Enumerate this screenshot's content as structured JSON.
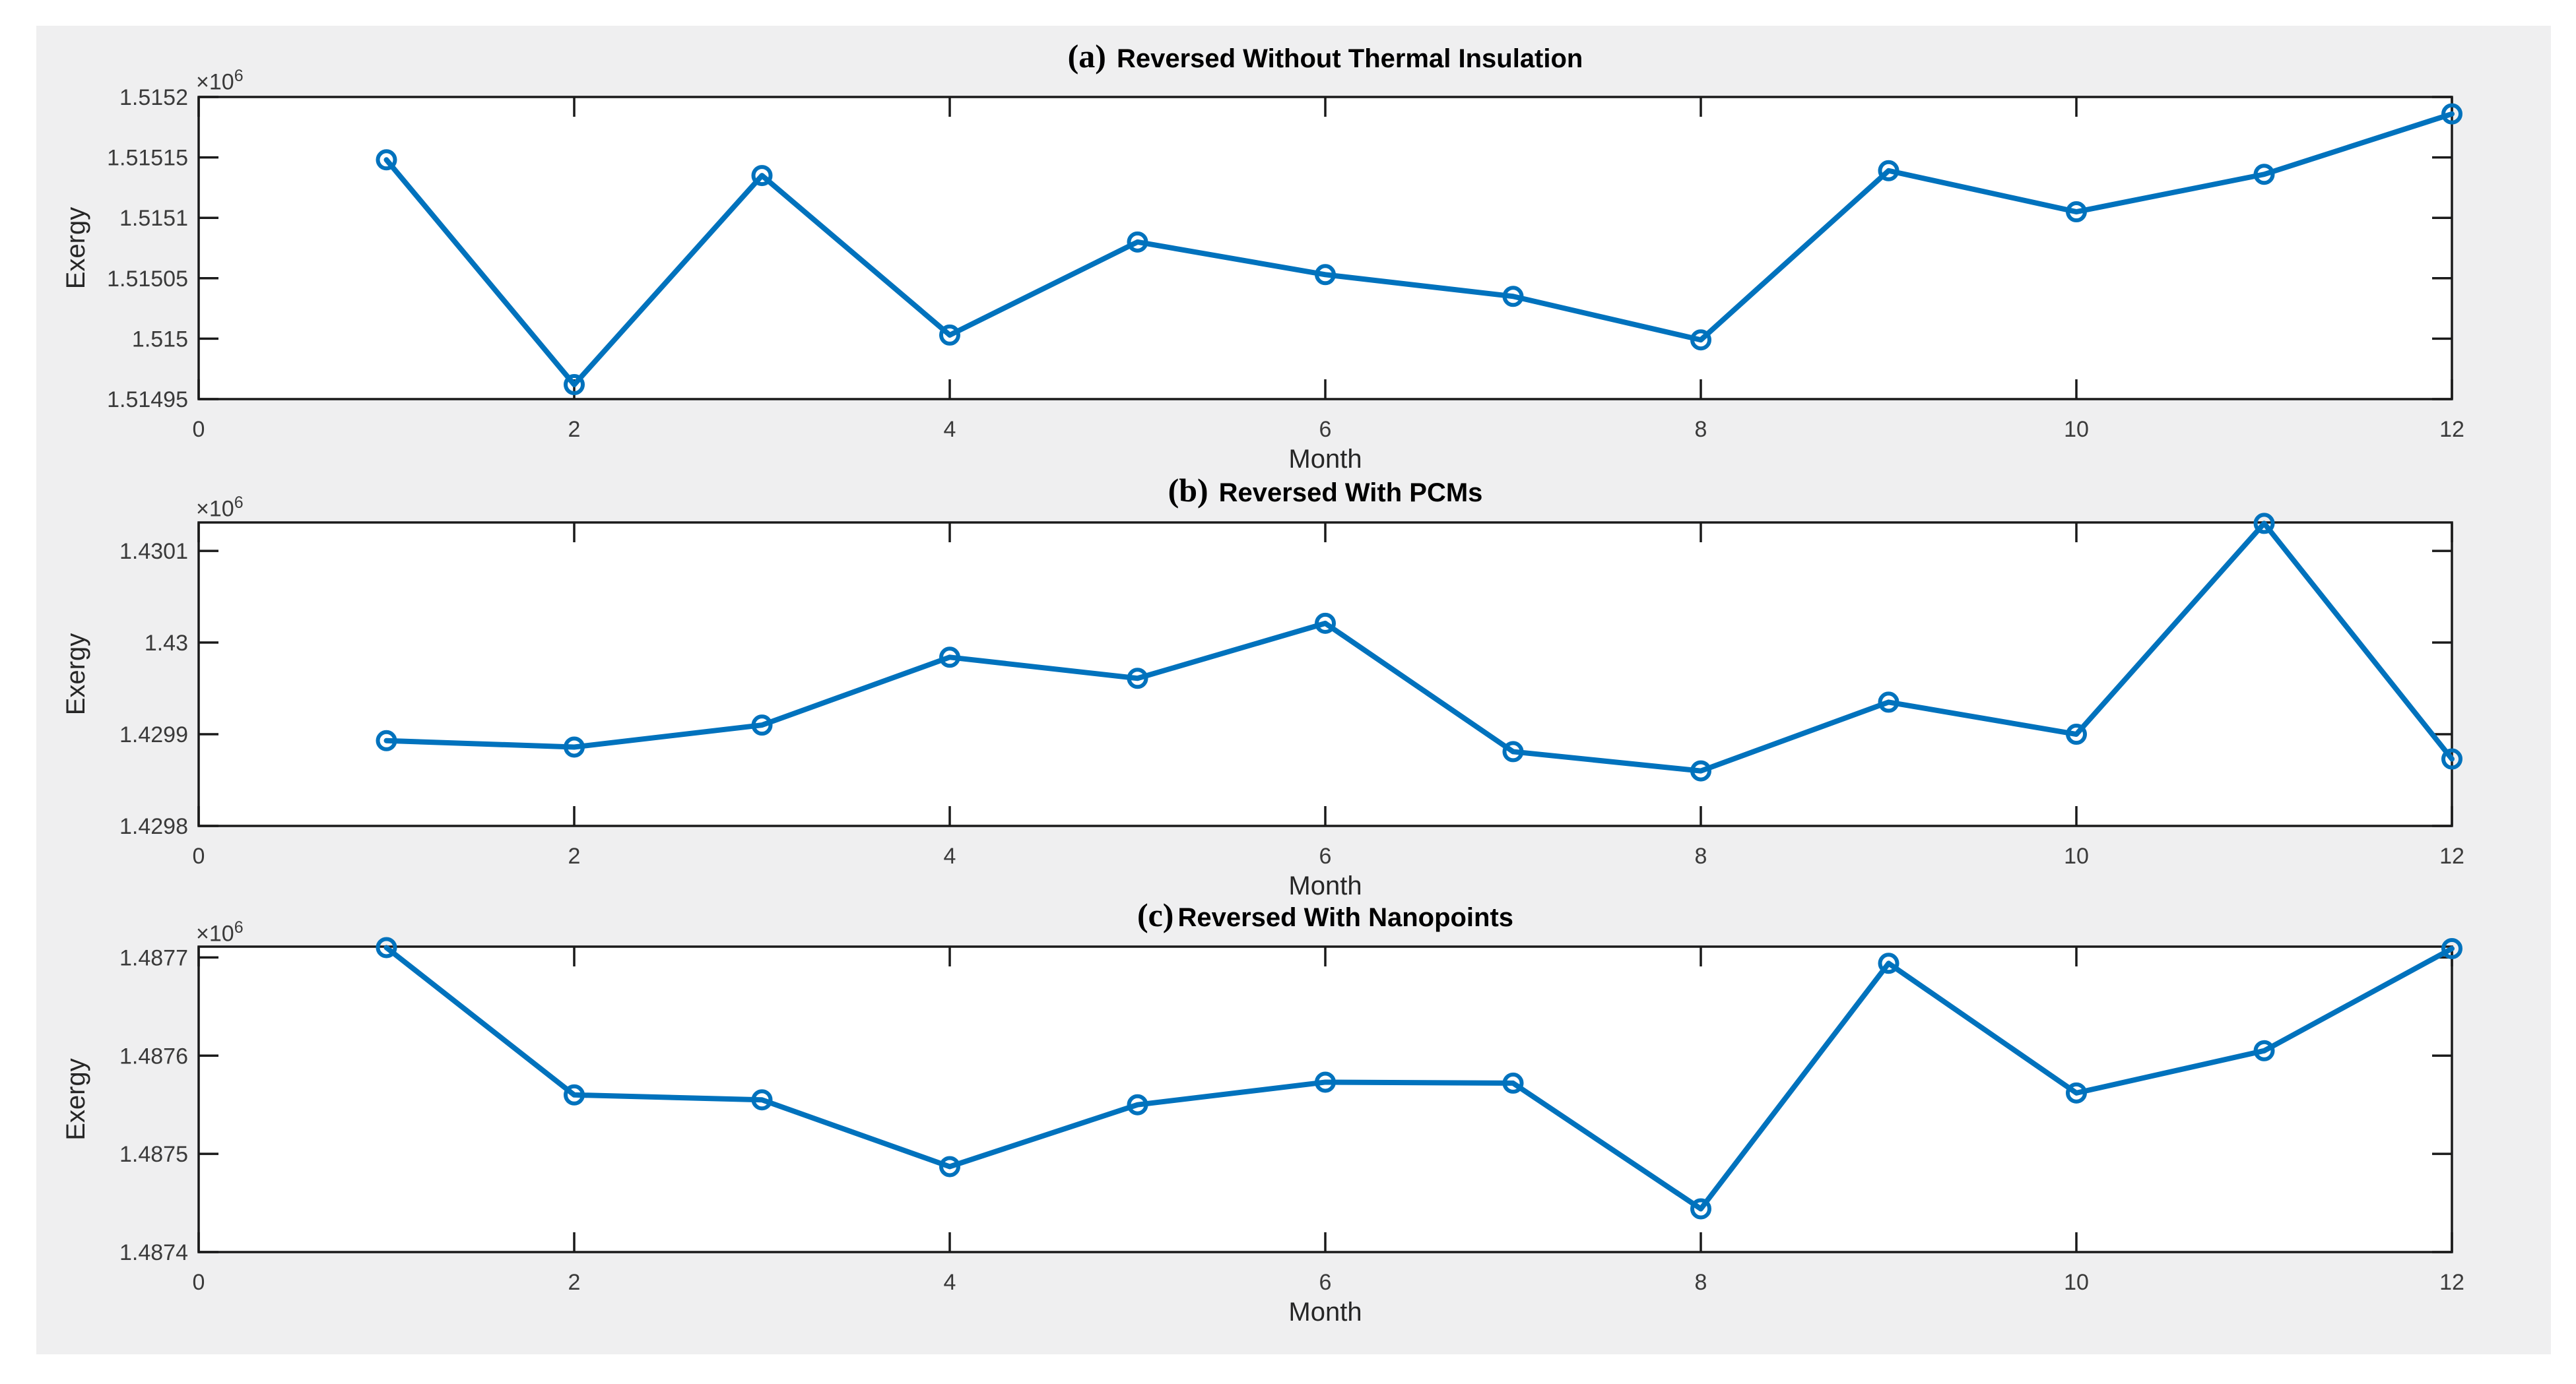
{
  "figure": {
    "page_bg": "#ffffff",
    "canvas_bg": "#efeff0",
    "plot_bg": "#ffffff",
    "axes_color": "#1a1a1a",
    "tick_label_color": "#3a3a3a",
    "axis_label_color": "#262626",
    "title_color": "#000000",
    "series_color": "#0072bd"
  },
  "chart_data": [
    {
      "type": "line",
      "panel_label": "(a)",
      "title": "Reversed Without Thermal Insulation",
      "xlabel": "Month",
      "ylabel": "Exergy",
      "y_exponent_base": "×10",
      "y_exponent_sup": "6",
      "legend": "none",
      "grid": false,
      "marker": "open-circle",
      "line_color": "#0072bd",
      "x": [
        1,
        2,
        3,
        4,
        5,
        6,
        7,
        8,
        9,
        10,
        11,
        12
      ],
      "values": [
        1515148,
        1514962,
        1515135,
        1515003,
        1515080,
        1515053,
        1515035,
        1514999,
        1515139,
        1515105,
        1515136,
        1515186
      ],
      "xlim": [
        0,
        12
      ],
      "ylim": [
        1514950,
        1515200
      ],
      "xticks": [
        0,
        2,
        4,
        6,
        8,
        10,
        12
      ],
      "xtick_labels": [
        "0",
        "2",
        "4",
        "6",
        "8",
        "10",
        "12"
      ],
      "yticks": [
        {
          "value": 1514950,
          "label": "1.51495"
        },
        {
          "value": 1515000,
          "label": "1.515"
        },
        {
          "value": 1515050,
          "label": "1.51505"
        },
        {
          "value": 1515100,
          "label": "1.5151"
        },
        {
          "value": 1515150,
          "label": "1.51515"
        },
        {
          "value": 1515200,
          "label": "1.5152"
        }
      ]
    },
    {
      "type": "line",
      "panel_label": "(b)",
      "title": "Reversed With PCMs",
      "xlabel": "Month",
      "ylabel": "Exergy",
      "y_exponent_base": "×10",
      "y_exponent_sup": "6",
      "legend": "none",
      "grid": false,
      "marker": "open-circle",
      "line_color": "#0072bd",
      "x": [
        1,
        2,
        3,
        4,
        5,
        6,
        7,
        8,
        9,
        10,
        11,
        12
      ],
      "values": [
        1429893,
        1429886,
        1429910,
        1429984,
        1429961,
        1430021,
        1429881,
        1429860,
        1429935,
        1429900,
        1430130,
        1429873
      ],
      "xlim": [
        0,
        12
      ],
      "ylim": [
        1429800,
        1430131
      ],
      "xticks": [
        0,
        2,
        4,
        6,
        8,
        10,
        12
      ],
      "xtick_labels": [
        "0",
        "2",
        "4",
        "6",
        "8",
        "10",
        "12"
      ],
      "yticks": [
        {
          "value": 1429800,
          "label": "1.4298"
        },
        {
          "value": 1429900,
          "label": "1.4299"
        },
        {
          "value": 1430000,
          "label": "1.43"
        },
        {
          "value": 1430100,
          "label": "1.4301"
        }
      ]
    },
    {
      "type": "line",
      "panel_label": "(c)",
      "title": "Reversed With Nanopoints",
      "xlabel": "Month",
      "ylabel": "Exergy",
      "y_exponent_base": "×10",
      "y_exponent_sup": "6",
      "legend": "none",
      "grid": false,
      "marker": "open-circle",
      "line_color": "#0072bd",
      "x": [
        1,
        2,
        3,
        4,
        5,
        6,
        7,
        8,
        9,
        10,
        11,
        12
      ],
      "values": [
        1487710,
        1487560,
        1487555,
        1487487,
        1487550,
        1487573,
        1487572,
        1487444,
        1487694,
        1487562,
        1487605,
        1487709
      ],
      "xlim": [
        0,
        12
      ],
      "ylim": [
        1487400,
        1487711
      ],
      "xticks": [
        0,
        2,
        4,
        6,
        8,
        10,
        12
      ],
      "xtick_labels": [
        "0",
        "2",
        "4",
        "6",
        "8",
        "10",
        "12"
      ],
      "yticks": [
        {
          "value": 1487400,
          "label": "1.4874"
        },
        {
          "value": 1487500,
          "label": "1.4875"
        },
        {
          "value": 1487600,
          "label": "1.4876"
        },
        {
          "value": 1487700,
          "label": "1.4877"
        }
      ]
    }
  ]
}
